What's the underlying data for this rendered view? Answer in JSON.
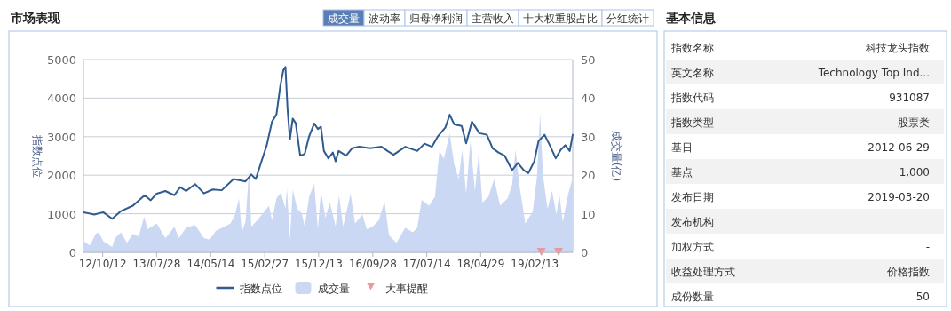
{
  "chart_data": [
    {
      "type": "line",
      "title": "市场表现",
      "annotations": [
        "成交量",
        "波动率",
        "归母净利润",
        "主营收入",
        "十大权重股占比",
        "分红统计"
      ],
      "ylabel": "指数点位",
      "y2label": "成交量(亿)",
      "xlim": [
        "2012-07-01",
        "2019-09-04"
      ],
      "xticks": [
        {
          "value": "2012-10-12",
          "label": "12/10/12"
        },
        {
          "value": "2013-07-28",
          "label": "13/07/28"
        },
        {
          "value": "2014-05-14",
          "label": "14/05/14"
        },
        {
          "value": "2015-02-27",
          "label": "15/02/27"
        },
        {
          "value": "2015-12-13",
          "label": "15/12/13"
        },
        {
          "value": "2016-09-28",
          "label": "16/09/28"
        },
        {
          "value": "2017-07-14",
          "label": "17/07/14"
        },
        {
          "value": "2018-04-29",
          "label": "18/04/29"
        },
        {
          "value": "2019-02-13",
          "label": "19/02/13"
        }
      ],
      "ylim": [
        0,
        5000
      ],
      "yticks": [
        0,
        1000,
        2000,
        3000,
        4000,
        5000
      ],
      "y2lim": [
        0,
        50
      ],
      "y2ticks": [
        0,
        10,
        20,
        30,
        40,
        50
      ],
      "grid": "y",
      "legend": "bottom",
      "series": [
        {
          "name": "指数点位",
          "type": "line",
          "color": "#2f5b8f",
          "x": [
            "2012-07-01",
            "2012-08-28",
            "2012-10-15",
            "2012-12-02",
            "2013-01-18",
            "2013-03-23",
            "2013-05-25",
            "2013-06-26",
            "2013-07-28",
            "2013-09-13",
            "2013-10-31",
            "2013-12-01",
            "2014-01-02",
            "2014-02-19",
            "2014-04-07",
            "2014-05-25",
            "2014-07-12",
            "2014-09-13",
            "2014-11-16",
            "2014-12-17",
            "2015-01-10",
            "2015-02-19",
            "2015-03-10",
            "2015-04-07",
            "2015-05-01",
            "2015-05-22",
            "2015-06-07",
            "2015-06-18",
            "2015-06-29",
            "2015-07-12",
            "2015-07-27",
            "2015-08-12",
            "2015-09-05",
            "2015-09-29",
            "2015-10-23",
            "2015-11-19",
            "2015-12-09",
            "2015-12-25",
            "2016-01-10",
            "2016-02-03",
            "2016-02-27",
            "2016-03-13",
            "2016-03-29",
            "2016-05-08",
            "2016-06-09",
            "2016-07-18",
            "2016-09-12",
            "2016-11-14",
            "2016-12-16",
            "2017-01-17",
            "2017-03-21",
            "2017-05-24",
            "2017-07-02",
            "2017-08-11",
            "2017-09-12",
            "2017-10-22",
            "2017-11-14",
            "2017-12-08",
            "2018-01-17",
            "2018-02-10",
            "2018-03-13",
            "2018-04-22",
            "2018-06-01",
            "2018-07-02",
            "2018-08-03",
            "2018-09-04",
            "2018-10-14",
            "2018-11-14",
            "2018-12-16",
            "2019-01-09",
            "2019-02-10",
            "2019-03-05",
            "2019-04-06",
            "2019-05-08",
            "2019-06-05",
            "2019-07-02",
            "2019-07-26",
            "2019-08-19",
            "2019-09-04"
          ],
          "values": [
            1040,
            980,
            1040,
            870,
            1070,
            1210,
            1480,
            1350,
            1520,
            1590,
            1480,
            1690,
            1590,
            1770,
            1530,
            1630,
            1610,
            1900,
            1840,
            2020,
            1900,
            2500,
            2780,
            3390,
            3580,
            4330,
            4730,
            4810,
            3740,
            2930,
            3470,
            3350,
            2510,
            2550,
            3010,
            3340,
            3200,
            3260,
            2630,
            2440,
            2590,
            2360,
            2630,
            2510,
            2700,
            2740,
            2700,
            2740,
            2630,
            2530,
            2740,
            2630,
            2820,
            2740,
            3010,
            3240,
            3570,
            3320,
            3280,
            2830,
            3390,
            3090,
            3050,
            2700,
            2590,
            2510,
            2130,
            2320,
            2130,
            2050,
            2360,
            2890,
            3050,
            2740,
            2440,
            2660,
            2780,
            2630,
            3050
          ]
        },
        {
          "name": "成交量",
          "type": "area",
          "axis": "y2",
          "color": "#cbd8f3",
          "x": [
            "2012-07-01",
            "2012-08-04",
            "2012-09-05",
            "2012-09-21",
            "2012-10-15",
            "2012-12-02",
            "2012-12-17",
            "2013-01-18",
            "2013-02-19",
            "2013-03-23",
            "2013-04-23",
            "2013-05-22",
            "2013-06-10",
            "2013-07-28",
            "2013-09-13",
            "2013-10-15",
            "2013-10-31",
            "2013-11-24",
            "2014-01-02",
            "2014-02-19",
            "2014-04-07",
            "2014-05-09",
            "2014-06-10",
            "2014-07-27",
            "2014-08-28",
            "2014-09-21",
            "2014-10-12",
            "2014-10-27",
            "2014-11-16",
            "2014-12-05",
            "2014-12-17",
            "2015-01-18",
            "2015-02-19",
            "2015-03-22",
            "2015-04-07",
            "2015-05-01",
            "2015-05-25",
            "2015-06-18",
            "2015-06-26",
            "2015-07-12",
            "2015-07-27",
            "2015-08-20",
            "2015-09-13",
            "2015-09-29",
            "2015-10-23",
            "2015-11-19",
            "2015-12-09",
            "2015-12-25",
            "2016-01-18",
            "2016-02-11",
            "2016-03-13",
            "2016-03-31",
            "2016-04-22",
            "2016-06-01",
            "2016-06-25",
            "2016-08-03",
            "2016-08-27",
            "2016-09-28",
            "2016-10-30",
            "2016-11-30",
            "2016-12-24",
            "2017-02-02",
            "2017-03-21",
            "2017-04-30",
            "2017-05-24",
            "2017-06-17",
            "2017-07-26",
            "2017-08-27",
            "2017-09-20",
            "2017-10-14",
            "2017-11-14",
            "2017-12-08",
            "2018-01-01",
            "2018-01-20",
            "2018-02-10",
            "2018-03-05",
            "2018-03-29",
            "2018-04-19",
            "2018-05-08",
            "2018-06-09",
            "2018-07-10",
            "2018-08-11",
            "2018-09-20",
            "2018-10-14",
            "2018-11-02",
            "2018-11-22",
            "2018-12-24",
            "2019-02-02",
            "2019-02-25",
            "2019-03-13",
            "2019-03-29",
            "2019-04-22",
            "2019-05-16",
            "2019-06-09",
            "2019-06-24",
            "2019-07-13",
            "2019-08-11",
            "2019-09-04"
          ],
          "values": [
            2.9,
            1.8,
            4.8,
            5.2,
            2.9,
            1.4,
            3.7,
            5.2,
            2.5,
            4.8,
            4.1,
            9.2,
            6.0,
            7.5,
            3.7,
            5.6,
            6.7,
            3.7,
            6.4,
            7.1,
            3.7,
            3.3,
            5.6,
            6.7,
            7.5,
            9.8,
            14.0,
            5.2,
            7.9,
            21.3,
            6.7,
            8.3,
            10.2,
            12.1,
            8.3,
            14.0,
            15.5,
            11.3,
            16.7,
            3.3,
            16.3,
            11.3,
            10.2,
            6.7,
            14.4,
            17.8,
            6.0,
            15.9,
            9.0,
            12.9,
            6.7,
            14.8,
            6.7,
            15.2,
            7.5,
            9.8,
            6.0,
            6.7,
            8.3,
            13.2,
            4.4,
            2.5,
            6.4,
            5.2,
            6.4,
            13.6,
            12.1,
            14.4,
            26.3,
            24.3,
            30.9,
            22.8,
            19.0,
            26.6,
            15.2,
            28.9,
            15.9,
            25.9,
            12.9,
            14.4,
            19.0,
            12.1,
            14.0,
            17.5,
            26.6,
            17.5,
            7.5,
            10.6,
            19.8,
            36.2,
            19.8,
            11.3,
            15.9,
            9.8,
            15.2,
            7.9,
            15.2,
            19.4
          ]
        },
        {
          "name": "大事提醒",
          "type": "scatter",
          "marker": "triangle",
          "color": "#e99a9f",
          "x": [
            "2019-03-20",
            "2019-06-20"
          ],
          "values": [
            0,
            0
          ]
        }
      ]
    },
    {
      "type": "other",
      "title": "基本信息",
      "categories": [
        "指数名称",
        "英文名称",
        "指数代码",
        "指数类型",
        "基日",
        "基点",
        "发布日期",
        "发布机构",
        "加权方式",
        "收益处理方式",
        "成份数量"
      ],
      "value_labels": [
        "科技龙头指数",
        "Technology Top Ind...",
        "931087",
        "股票类",
        "2012-06-29",
        "1,000",
        "2019-03-20",
        null,
        "-",
        "价格指数",
        "50"
      ]
    }
  ]
}
